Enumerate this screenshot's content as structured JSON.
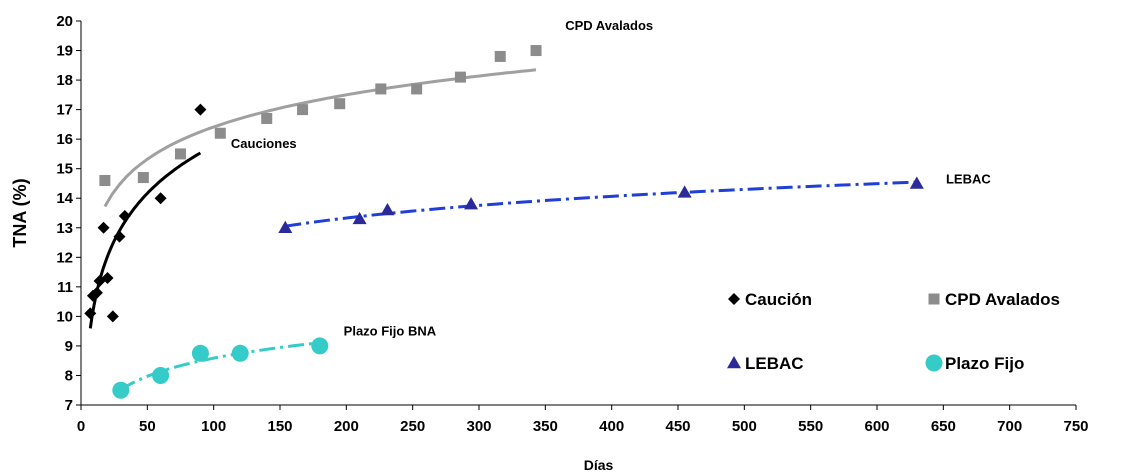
{
  "chart_data": {
    "type": "scatter",
    "xlabel": "Días",
    "ylabel": "TNA (%)",
    "xlim": [
      0,
      750
    ],
    "ylim": [
      7,
      20
    ],
    "x_ticks": [
      0,
      50,
      100,
      150,
      200,
      250,
      300,
      350,
      400,
      450,
      500,
      550,
      600,
      650,
      700,
      750
    ],
    "y_ticks": [
      7,
      8,
      9,
      10,
      11,
      12,
      13,
      14,
      15,
      16,
      17,
      18,
      19,
      20
    ],
    "grid": false,
    "legend_position": "bottom-right",
    "series": [
      {
        "name": "Caución",
        "color": "#000000",
        "marker": "diamond",
        "points": [
          [
            7,
            10.1
          ],
          [
            9,
            10.7
          ],
          [
            12,
            10.8
          ],
          [
            14,
            11.2
          ],
          [
            17,
            13.0
          ],
          [
            20,
            11.3
          ],
          [
            24,
            10.0
          ],
          [
            29,
            12.7
          ],
          [
            33,
            13.4
          ],
          [
            60,
            14.0
          ],
          [
            90,
            17.0
          ]
        ],
        "trend": {
          "color": "#000000",
          "style": "solid",
          "x_from": 7,
          "x_to": 90
        }
      },
      {
        "name": "CPD Avalados",
        "color": "#8c8c8c",
        "marker": "square",
        "points": [
          [
            18,
            14.6
          ],
          [
            47,
            14.7
          ],
          [
            75,
            15.5
          ],
          [
            105,
            16.2
          ],
          [
            140,
            16.7
          ],
          [
            167,
            17.0
          ],
          [
            195,
            17.2
          ],
          [
            226,
            17.7
          ],
          [
            253,
            17.7
          ],
          [
            286,
            18.1
          ],
          [
            316,
            18.8
          ],
          [
            343,
            19.0
          ]
        ],
        "trend": {
          "color": "#a0a0a0",
          "style": "solid",
          "x_from": 18,
          "x_to": 343
        }
      },
      {
        "name": "LEBAC",
        "color": "#2a2a9a",
        "marker": "triangle",
        "points": [
          [
            154,
            13.0
          ],
          [
            210,
            13.3
          ],
          [
            231,
            13.6
          ],
          [
            294,
            13.8
          ],
          [
            455,
            14.2
          ],
          [
            630,
            14.5
          ]
        ],
        "trend": {
          "color": "#1f3fd6",
          "style": "dashed",
          "x_from": 154,
          "x_to": 630
        }
      },
      {
        "name": "Plazo Fijo",
        "color": "#35cbc8",
        "marker": "circle",
        "points": [
          [
            30,
            7.5
          ],
          [
            60,
            8.0
          ],
          [
            90,
            8.75
          ],
          [
            120,
            8.75
          ],
          [
            180,
            9.0
          ]
        ],
        "trend": {
          "color": "#35cbc8",
          "style": "dashed",
          "x_from": 30,
          "x_to": 180
        }
      }
    ],
    "annotations": [
      {
        "text": "CPD Avalados",
        "x": 365,
        "y": 19.7
      },
      {
        "text": "Cauciones",
        "x": 113,
        "y": 15.7
      },
      {
        "text": "LEBAC",
        "x": 652,
        "y": 14.5
      },
      {
        "text": "Plazo Fijo BNA",
        "x": 198,
        "y": 9.35
      }
    ]
  }
}
